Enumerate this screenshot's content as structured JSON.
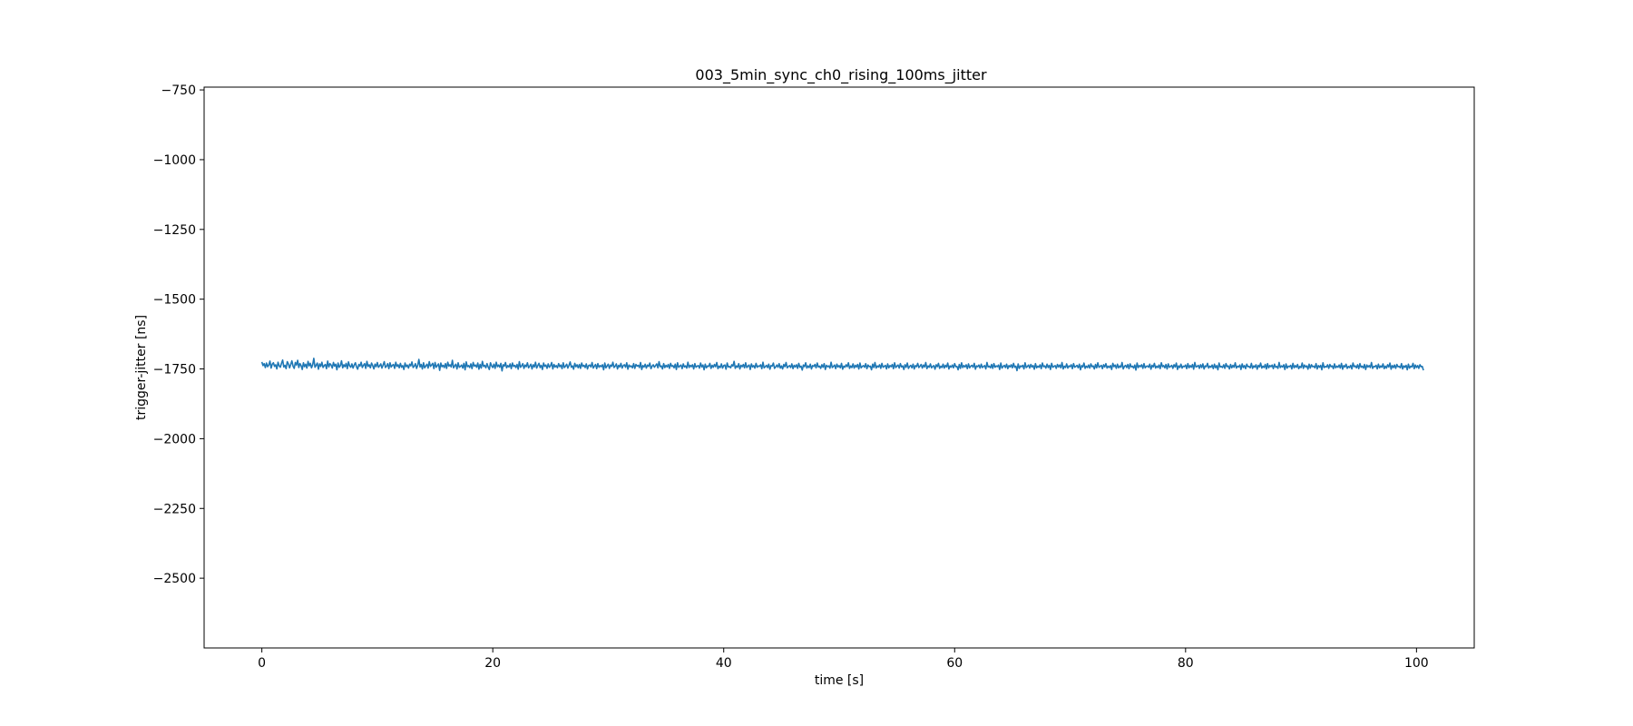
{
  "chart_data": {
    "type": "line",
    "title": "003_5min_sync_ch0_rising_100ms_jitter",
    "xlabel": "time [s]",
    "ylabel": "trigger-jitter [ns]",
    "xlim": [
      -5,
      105
    ],
    "ylim": [
      -2750,
      -740
    ],
    "x_ticks": [
      0,
      20,
      40,
      60,
      80,
      100
    ],
    "y_ticks": [
      -750,
      -1000,
      -1250,
      -1500,
      -1750,
      -2000,
      -2250,
      -2500
    ],
    "x_tick_labels": [
      "0",
      "20",
      "40",
      "60",
      "80",
      "100"
    ],
    "y_tick_labels": [
      "−750",
      "−1000",
      "−1250",
      "−1500",
      "−1750",
      "−2000",
      "−2250",
      "−2500"
    ],
    "grid": false,
    "series": [
      {
        "color": "#1f77b4",
        "x_start": 0,
        "x_step": 0.1,
        "values": [
          -1725,
          -1738,
          -1731,
          -1745,
          -1729,
          -1742,
          -1736,
          -1722,
          -1747,
          -1733,
          -1728,
          -1741,
          -1735,
          -1750,
          -1726,
          -1739,
          -1744,
          -1730,
          -1718,
          -1743,
          -1737,
          -1749,
          -1724,
          -1732,
          -1746,
          -1734,
          -1721,
          -1740,
          -1748,
          -1727,
          -1736,
          -1719,
          -1745,
          -1731,
          -1738,
          -1752,
          -1728,
          -1742,
          -1733,
          -1747,
          -1723,
          -1739,
          -1730,
          -1746,
          -1735,
          -1712,
          -1744,
          -1737,
          -1729,
          -1751,
          -1732,
          -1741,
          -1726,
          -1745,
          -1738,
          -1734,
          -1749,
          -1722,
          -1743,
          -1731,
          -1736,
          -1747,
          -1727,
          -1740,
          -1733,
          -1753,
          -1729,
          -1744,
          -1738,
          -1721,
          -1746,
          -1735,
          -1742,
          -1730,
          -1749,
          -1725,
          -1739,
          -1744,
          -1732,
          -1747,
          -1736,
          -1728,
          -1743,
          -1751,
          -1734,
          -1740,
          -1726,
          -1745,
          -1737,
          -1731,
          -1748,
          -1723,
          -1741,
          -1735,
          -1746,
          -1729,
          -1738,
          -1750,
          -1733,
          -1742,
          -1727,
          -1744,
          -1739,
          -1732,
          -1747,
          -1736,
          -1724,
          -1745,
          -1740,
          -1731,
          -1749,
          -1728,
          -1743,
          -1737,
          -1734,
          -1748,
          -1726,
          -1741,
          -1735,
          -1746,
          -1730,
          -1744,
          -1738,
          -1752,
          -1729,
          -1742,
          -1736,
          -1747,
          -1733,
          -1739,
          -1725,
          -1745,
          -1740,
          -1731,
          -1748,
          -1737,
          -1716,
          -1743,
          -1734,
          -1750,
          -1728,
          -1746,
          -1739,
          -1733,
          -1747,
          -1724,
          -1741,
          -1736,
          -1730,
          -1749,
          -1727,
          -1744,
          -1738,
          -1732,
          -1755,
          -1729,
          -1742,
          -1737,
          -1745,
          -1731,
          -1748,
          -1726,
          -1740,
          -1735,
          -1743,
          -1719,
          -1746,
          -1739,
          -1733,
          -1750,
          -1728,
          -1744,
          -1741,
          -1736,
          -1747,
          -1730,
          -1753,
          -1725,
          -1742,
          -1738,
          -1745,
          -1732,
          -1749,
          -1727,
          -1740,
          -1736,
          -1744,
          -1729,
          -1751,
          -1734,
          -1747,
          -1723,
          -1741,
          -1737,
          -1746,
          -1731,
          -1743,
          -1752,
          -1728,
          -1739,
          -1745,
          -1733,
          -1748,
          -1726,
          -1742,
          -1736,
          -1744,
          -1730,
          -1757,
          -1735,
          -1740,
          -1727,
          -1746,
          -1738,
          -1743,
          -1732,
          -1749,
          -1729,
          -1741,
          -1737,
          -1745,
          -1734,
          -1751,
          -1724,
          -1744,
          -1739,
          -1731,
          -1748,
          -1736,
          -1742,
          -1728,
          -1746,
          -1740,
          -1733,
          -1750,
          -1735,
          -1743,
          -1726,
          -1747,
          -1738,
          -1730,
          -1745,
          -1737,
          -1752,
          -1729,
          -1741,
          -1736,
          -1748,
          -1732,
          -1744,
          -1739,
          -1727,
          -1750,
          -1734,
          -1743,
          -1738,
          -1746,
          -1731,
          -1742,
          -1736,
          -1749,
          -1728,
          -1745,
          -1740,
          -1733,
          -1747,
          -1737,
          -1725,
          -1744,
          -1739,
          -1751,
          -1730,
          -1742,
          -1735,
          -1746,
          -1734,
          -1748,
          -1729,
          -1741,
          -1737,
          -1745,
          -1732,
          -1750,
          -1738,
          -1736,
          -1743,
          -1727,
          -1747,
          -1740,
          -1734,
          -1749,
          -1731,
          -1744,
          -1738,
          -1742,
          -1735,
          -1753,
          -1729,
          -1746,
          -1739,
          -1733,
          -1748,
          -1736,
          -1741,
          -1726,
          -1745,
          -1740,
          -1732,
          -1750,
          -1737,
          -1743,
          -1730,
          -1747,
          -1738,
          -1735,
          -1744,
          -1728,
          -1751,
          -1736,
          -1742,
          -1739,
          -1746,
          -1731,
          -1748,
          -1734,
          -1740,
          -1737,
          -1745,
          -1727,
          -1752,
          -1738,
          -1743,
          -1733,
          -1747,
          -1736,
          -1741,
          -1729,
          -1749,
          -1740,
          -1735,
          -1744,
          -1738,
          -1732,
          -1746,
          -1724,
          -1742,
          -1739,
          -1750,
          -1731,
          -1745,
          -1737,
          -1743,
          -1734,
          -1748,
          -1730,
          -1741,
          -1738,
          -1746,
          -1733,
          -1752,
          -1728,
          -1744,
          -1740,
          -1736,
          -1749,
          -1732,
          -1743,
          -1739,
          -1747,
          -1726,
          -1745,
          -1737,
          -1742,
          -1735,
          -1750,
          -1731,
          -1744,
          -1740,
          -1738,
          -1747,
          -1729,
          -1743,
          -1736,
          -1753,
          -1733,
          -1746,
          -1739,
          -1741,
          -1730,
          -1748,
          -1737,
          -1744,
          -1734,
          -1742,
          -1727,
          -1749,
          -1740,
          -1745,
          -1732,
          -1747,
          -1738,
          -1736,
          -1751,
          -1729,
          -1743,
          -1741,
          -1746,
          -1735,
          -1740,
          -1723,
          -1748,
          -1739,
          -1744,
          -1731,
          -1750,
          -1737,
          -1742,
          -1734,
          -1746,
          -1728,
          -1745,
          -1740,
          -1736,
          -1752,
          -1732,
          -1743,
          -1738,
          -1747,
          -1730,
          -1744,
          -1739,
          -1741,
          -1735,
          -1749,
          -1726,
          -1746,
          -1742,
          -1737,
          -1745,
          -1733,
          -1751,
          -1738,
          -1740,
          -1729,
          -1748,
          -1743,
          -1736,
          -1744,
          -1731,
          -1747,
          -1739,
          -1750,
          -1734,
          -1742,
          -1727,
          -1746,
          -1741,
          -1738,
          -1745,
          -1732,
          -1749,
          -1737,
          -1743,
          -1735,
          -1748,
          -1730,
          -1744,
          -1740,
          -1754,
          -1736,
          -1742,
          -1728,
          -1747,
          -1739,
          -1745,
          -1733,
          -1750,
          -1738,
          -1741,
          -1734,
          -1746,
          -1729,
          -1743,
          -1740,
          -1748,
          -1735,
          -1744,
          -1731,
          -1752,
          -1737,
          -1742,
          -1739,
          -1747,
          -1726,
          -1745,
          -1741,
          -1736,
          -1749,
          -1733,
          -1743,
          -1738,
          -1746,
          -1730,
          -1751,
          -1740,
          -1744,
          -1735,
          -1742,
          -1728,
          -1748,
          -1739,
          -1745,
          -1732,
          -1747,
          -1737,
          -1743,
          -1734,
          -1750,
          -1729,
          -1746,
          -1741,
          -1738,
          -1744,
          -1731,
          -1749,
          -1736,
          -1742,
          -1740,
          -1753,
          -1733,
          -1745,
          -1727,
          -1747,
          -1739,
          -1743,
          -1735,
          -1748,
          -1730,
          -1744,
          -1741,
          -1737,
          -1750,
          -1732,
          -1746,
          -1738,
          -1742,
          -1734,
          -1749,
          -1728,
          -1745,
          -1740,
          -1736,
          -1747,
          -1731,
          -1743,
          -1739,
          -1752,
          -1735,
          -1744,
          -1729,
          -1748,
          -1741,
          -1737,
          -1746,
          -1733,
          -1750,
          -1738,
          -1742,
          -1730,
          -1745,
          -1740,
          -1734,
          -1747,
          -1736,
          -1743,
          -1727,
          -1749,
          -1739,
          -1744,
          -1732,
          -1746,
          -1741,
          -1738,
          -1751,
          -1735,
          -1742,
          -1730,
          -1748,
          -1740,
          -1745,
          -1733,
          -1747,
          -1737,
          -1743,
          -1729,
          -1750,
          -1739,
          -1744,
          -1736,
          -1746,
          -1731,
          -1742,
          -1741,
          -1753,
          -1734,
          -1748,
          -1728,
          -1745,
          -1738,
          -1743,
          -1735,
          -1749,
          -1732,
          -1746,
          -1740,
          -1737,
          -1744,
          -1730,
          -1751,
          -1739,
          -1742,
          -1736,
          -1747,
          -1733,
          -1745,
          -1741,
          -1738,
          -1750,
          -1727,
          -1743,
          -1740,
          -1746,
          -1734,
          -1748,
          -1731,
          -1744,
          -1739,
          -1742,
          -1736,
          -1752,
          -1729,
          -1747,
          -1741,
          -1737,
          -1745,
          -1733,
          -1749,
          -1738,
          -1743,
          -1735,
          -1746,
          -1730,
          -1744,
          -1740,
          -1756,
          -1732,
          -1748,
          -1739,
          -1742,
          -1737,
          -1750,
          -1728,
          -1745,
          -1741,
          -1736,
          -1747,
          -1734,
          -1743,
          -1738,
          -1751,
          -1731,
          -1746,
          -1740,
          -1744,
          -1735,
          -1749,
          -1729,
          -1742,
          -1739,
          -1747,
          -1733,
          -1745,
          -1737,
          -1752,
          -1730,
          -1744,
          -1741,
          -1738,
          -1748,
          -1734,
          -1743,
          -1736,
          -1746,
          -1727,
          -1750,
          -1740,
          -1745,
          -1732,
          -1747,
          -1739,
          -1742,
          -1735,
          -1749,
          -1731,
          -1744,
          -1741,
          -1737,
          -1746,
          -1733,
          -1753,
          -1738,
          -1743,
          -1729,
          -1748,
          -1740,
          -1745,
          -1736,
          -1747,
          -1732,
          -1742,
          -1739,
          -1750,
          -1734,
          -1746,
          -1728,
          -1744,
          -1741,
          -1737,
          -1749,
          -1735,
          -1743,
          -1731,
          -1747,
          -1740,
          -1745,
          -1738,
          -1752,
          -1730,
          -1742,
          -1736,
          -1748,
          -1733,
          -1746,
          -1739,
          -1744,
          -1727,
          -1750,
          -1741,
          -1737,
          -1745,
          -1734,
          -1749,
          -1732,
          -1743,
          -1740,
          -1747,
          -1736,
          -1754,
          -1729,
          -1745,
          -1738,
          -1742,
          -1735,
          -1748,
          -1731,
          -1746,
          -1741,
          -1739,
          -1744,
          -1733,
          -1751,
          -1737,
          -1743,
          -1730,
          -1747,
          -1740,
          -1745,
          -1736,
          -1749,
          -1728,
          -1742,
          -1738,
          -1746,
          -1734,
          -1750,
          -1732,
          -1744,
          -1741,
          -1737,
          -1748,
          -1735,
          -1743,
          -1729,
          -1752,
          -1739,
          -1745,
          -1733,
          -1747,
          -1740,
          -1742,
          -1736,
          -1749,
          -1731,
          -1746,
          -1738,
          -1744,
          -1734,
          -1751,
          -1727,
          -1743,
          -1741,
          -1737,
          -1748,
          -1735,
          -1745,
          -1732,
          -1750,
          -1739,
          -1742,
          -1730,
          -1747,
          -1740,
          -1744,
          -1736,
          -1749,
          -1733,
          -1746,
          -1738,
          -1753,
          -1729,
          -1743,
          -1741,
          -1745,
          -1735,
          -1748,
          -1731,
          -1742,
          -1739,
          -1750,
          -1734,
          -1746,
          -1737,
          -1744,
          -1728,
          -1747,
          -1740,
          -1743,
          -1736,
          -1752,
          -1732,
          -1745,
          -1738,
          -1749,
          -1733,
          -1742,
          -1741,
          -1746,
          -1730,
          -1748,
          -1739,
          -1744,
          -1735,
          -1751,
          -1737,
          -1743,
          -1729,
          -1747,
          -1740,
          -1745,
          -1734,
          -1750,
          -1731,
          -1746,
          -1738,
          -1742,
          -1736,
          -1749,
          -1733,
          -1744,
          -1741,
          -1748,
          -1727,
          -1745,
          -1739,
          -1743,
          -1735,
          -1752,
          -1732,
          -1747,
          -1740,
          -1742,
          -1737,
          -1750,
          -1730,
          -1746,
          -1738,
          -1744,
          -1734,
          -1749,
          -1741,
          -1745,
          -1729,
          -1748,
          -1736,
          -1743,
          -1739,
          -1751,
          -1733,
          -1747,
          -1735,
          -1742,
          -1740,
          -1746,
          -1731,
          -1750,
          -1738,
          -1744,
          -1737,
          -1753,
          -1728,
          -1745,
          -1741,
          -1743,
          -1735,
          -1748,
          -1734,
          -1742,
          -1739,
          -1749,
          -1732,
          -1746,
          -1740,
          -1744,
          -1736,
          -1747,
          -1730,
          -1751,
          -1738,
          -1743,
          -1733,
          -1748,
          -1741,
          -1745,
          -1737,
          -1750,
          -1729,
          -1742,
          -1739,
          -1746,
          -1735,
          -1749,
          -1731,
          -1744,
          -1740,
          -1747,
          -1734,
          -1752,
          -1736,
          -1743,
          -1738,
          -1745,
          -1727,
          -1748,
          -1741,
          -1742,
          -1737,
          -1750,
          -1733,
          -1746,
          -1739,
          -1744,
          -1732,
          -1749,
          -1740,
          -1747,
          -1735,
          -1743,
          -1729,
          -1751,
          -1738,
          -1745,
          -1736,
          -1748,
          -1734,
          -1742,
          -1741,
          -1746,
          -1731,
          -1750,
          -1739,
          -1744,
          -1737,
          -1753,
          -1733,
          -1747,
          -1740,
          -1743,
          -1730,
          -1749,
          -1736,
          -1745,
          -1738,
          -1748,
          -1735,
          -1742,
          -1741,
          -1755
        ]
      }
    ]
  }
}
